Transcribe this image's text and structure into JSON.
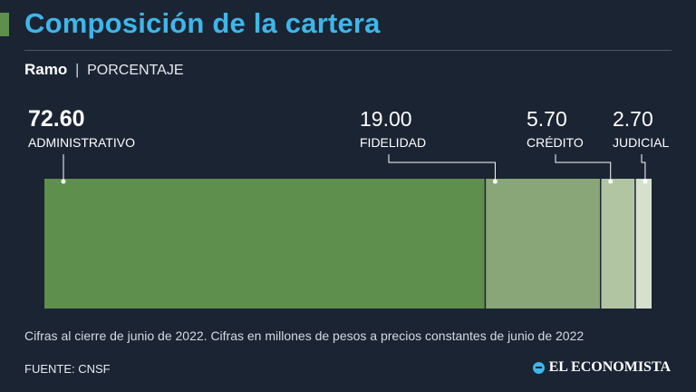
{
  "header": {
    "title": "Composición de la cartera",
    "subtitle_bold": "Ramo",
    "subtitle_sep": "|",
    "subtitle_unit": "PORCENTAJE"
  },
  "colors": {
    "accent": "#5e8f4c",
    "title": "#3fb6e8",
    "background": "#1b2433"
  },
  "chart_data": {
    "type": "bar",
    "orientation": "horizontal-stacked",
    "title": "Composición de la cartera",
    "ylabel": "PORCENTAJE",
    "categories": [
      "ADMINISTRATIVO",
      "FIDELIDAD",
      "CRÉDITO",
      "JUDICIAL"
    ],
    "values": [
      72.6,
      19.0,
      5.7,
      2.7
    ],
    "value_labels": [
      "72.60",
      "19.00",
      "5.70",
      "2.70"
    ],
    "colors": [
      "#5e8f4c",
      "#88a677",
      "#b1c5a3",
      "#d6e0cd"
    ],
    "xlim": [
      0,
      100
    ]
  },
  "footer": {
    "note": "Cifras al cierre de junio de 2022. Cifras en millones de pesos a precios constantes de junio de 2022",
    "source": "FUENTE: CNSF",
    "brand": "EL ECONOMISTA"
  }
}
